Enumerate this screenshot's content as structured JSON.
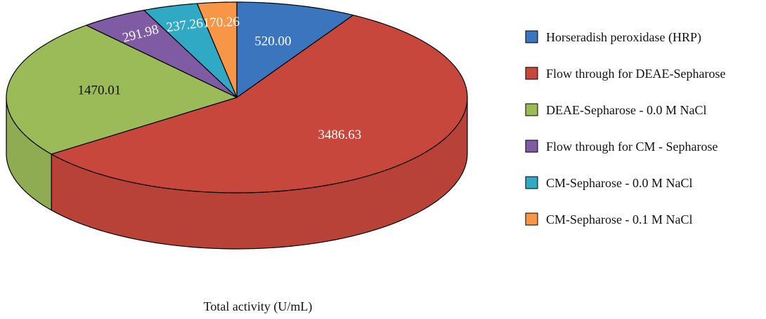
{
  "chart_data": {
    "type": "pie",
    "style": "3d",
    "title": "",
    "xlabel": "Total activity (U/mL)",
    "legend_position": "right",
    "slices": [
      {
        "label": "Horseradish peroxidase (HRP)",
        "value": 520.0,
        "display": "520.00",
        "color": "#3A75BD"
      },
      {
        "label": "Flow through for DEAE-Sepharose",
        "value": 3486.63,
        "display": "3486.63",
        "color": "#C8473D"
      },
      {
        "label": "DEAE-Sepharose - 0.0 M NaCl",
        "value": 1470.01,
        "display": "1470.01",
        "color": "#9BBB59"
      },
      {
        "label": "Flow through for CM - Sepharose",
        "value": 291.98,
        "display": "291.98",
        "color": "#7F5BA4"
      },
      {
        "label": "CM-Sepharose - 0.0 M NaCl",
        "value": 237.26,
        "display": "237.26",
        "color": "#2FA9C4"
      },
      {
        "label": "CM-Sepharose - 0.1 M NaCl",
        "value": 170.26,
        "display": "170.26",
        "color": "#F79646"
      }
    ]
  }
}
